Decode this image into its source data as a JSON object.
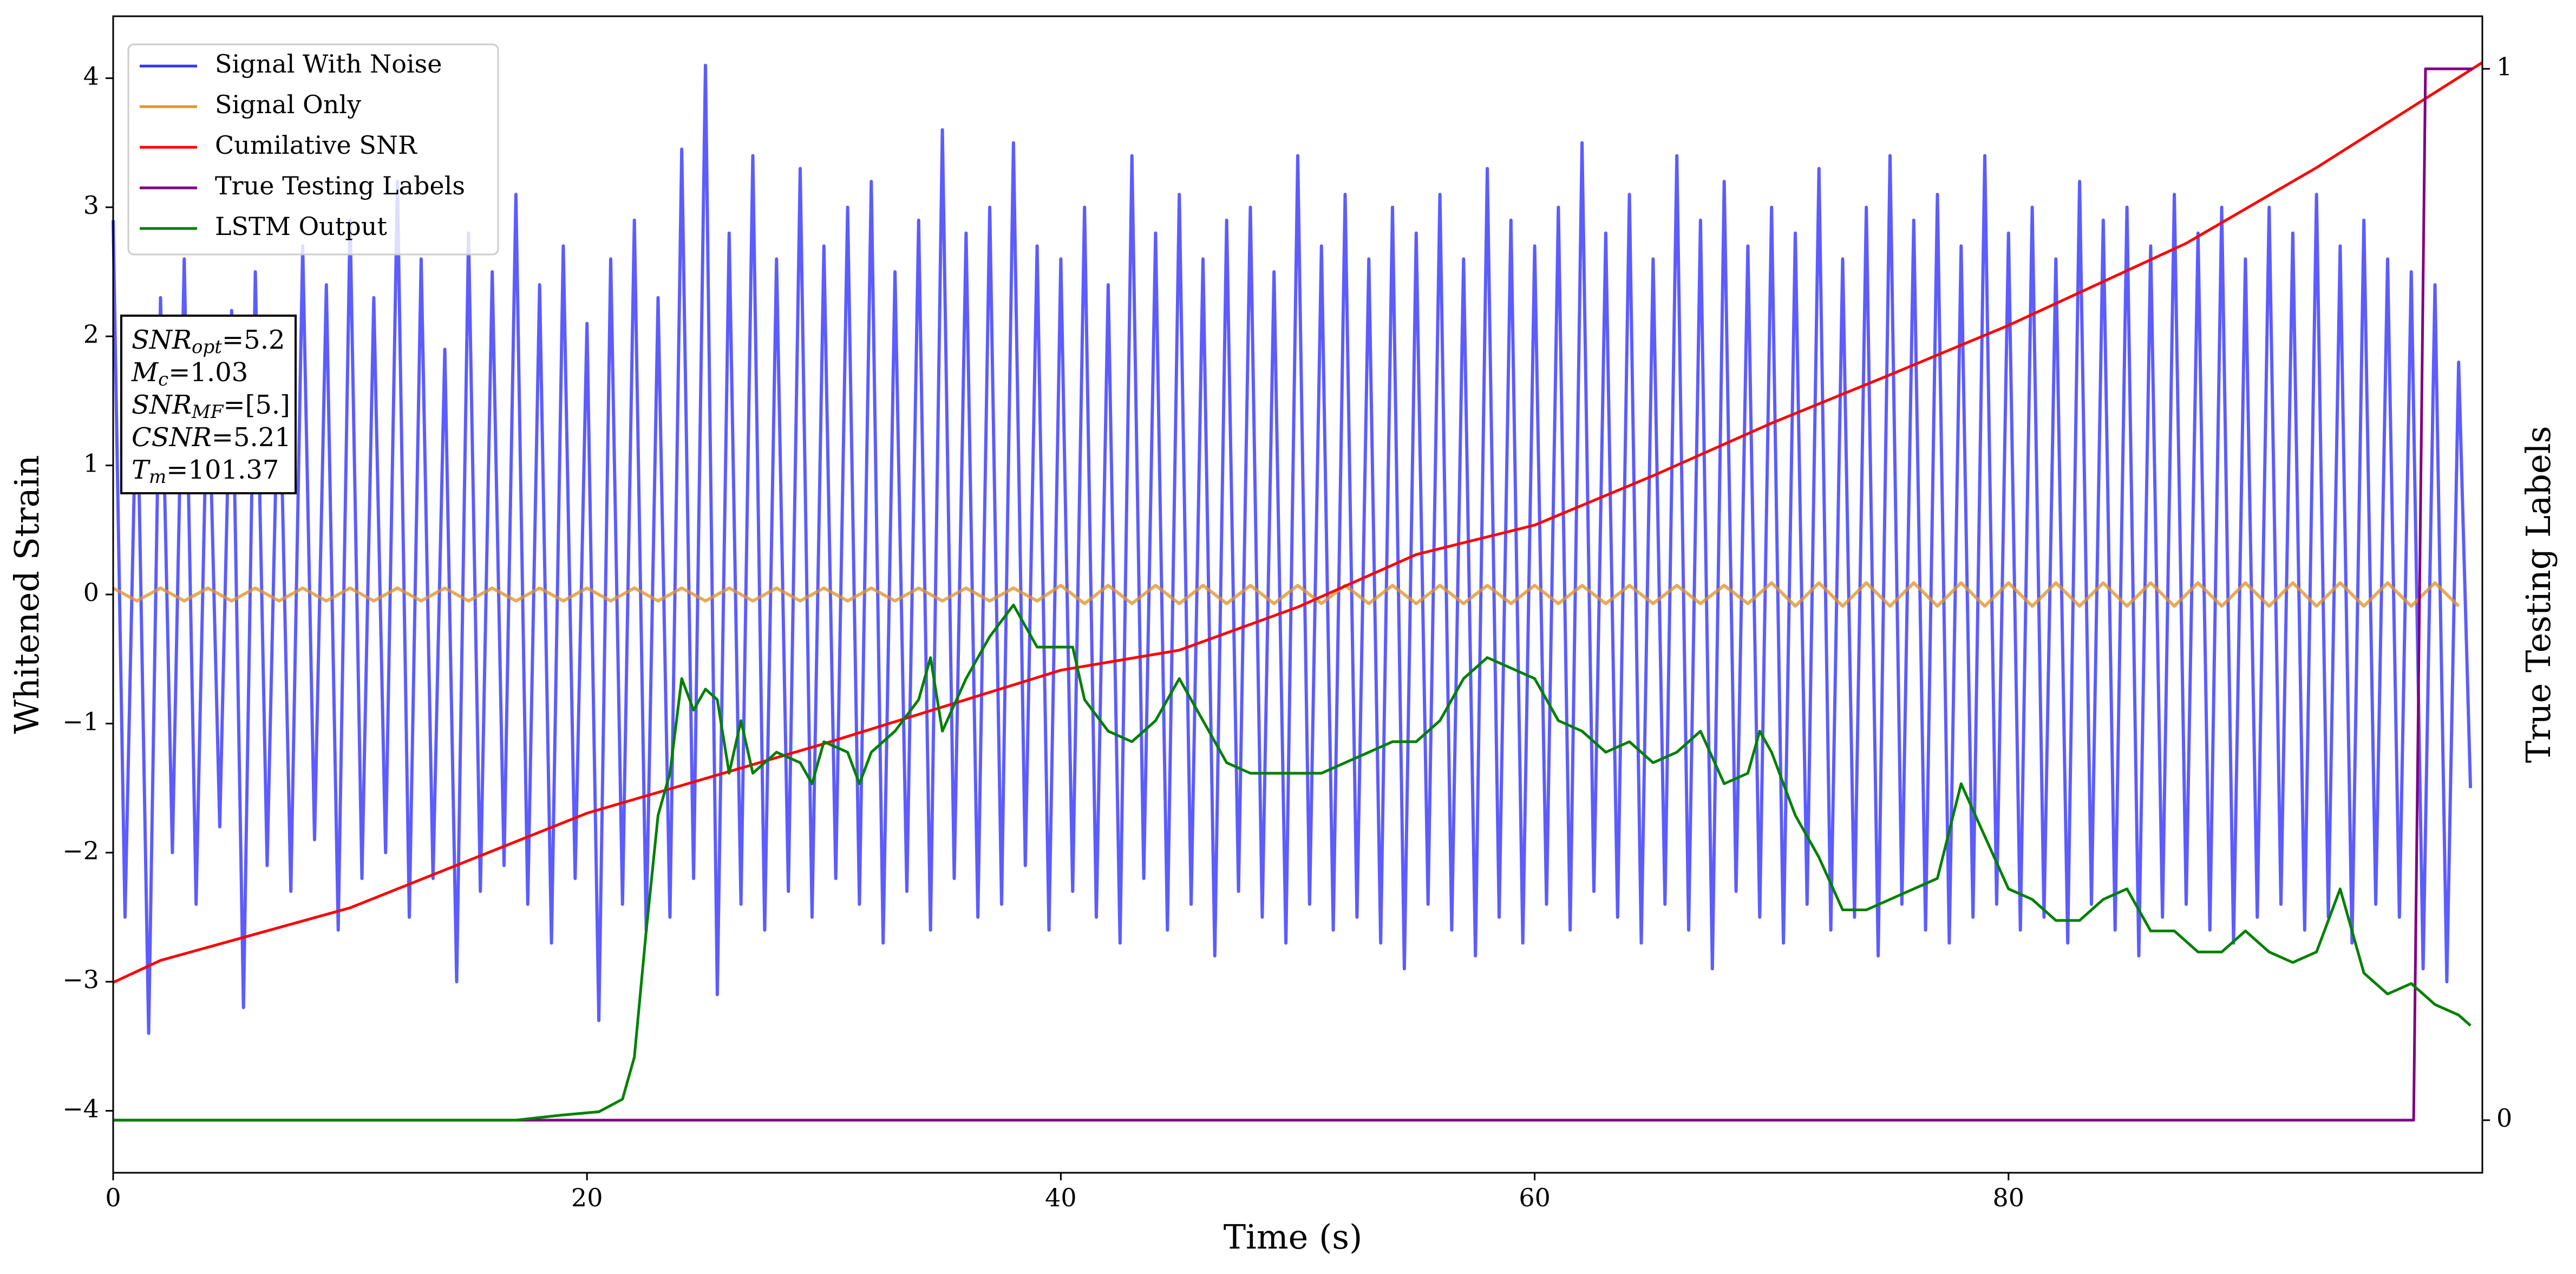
{
  "chart_data": {
    "type": "line",
    "xlabel": "Time (s)",
    "ylabel": "Whitened Strain",
    "y2label": "True Testing Labels",
    "xlim": [
      0,
      100
    ],
    "xticks": [
      0,
      20,
      40,
      60,
      80
    ],
    "ylim": [
      -4.48,
      4.48
    ],
    "yticks": [
      {
        "value": -4,
        "label": "−4"
      },
      {
        "value": -3,
        "label": "−3"
      },
      {
        "value": -2,
        "label": "−2"
      },
      {
        "value": -1,
        "label": "−1"
      },
      0,
      1,
      2,
      3,
      4
    ],
    "y2lim": [
      -0.05,
      1.05
    ],
    "y2ticks": [
      0,
      1
    ],
    "legend": "upper left",
    "annotation": [
      {
        "symbol": "SNR",
        "subscript": "opt",
        "text": "=5.2"
      },
      {
        "symbol": "M",
        "subscript": "c",
        "text": "=1.03"
      },
      {
        "symbol": "SNR",
        "subscript": "MF",
        "text": "=[5.]"
      },
      {
        "symbol": "CSNR",
        "text": "=5.21"
      },
      {
        "symbol": "T",
        "subscript": "m",
        "text": "=101.37"
      }
    ],
    "series": [
      {
        "name": "Signal With Noise",
        "color": "#3333ff",
        "x": [
          0,
          0.5,
          1,
          1.5,
          2,
          2.5,
          3,
          3.5,
          4,
          4.5,
          5,
          5.5,
          6,
          6.5,
          7,
          7.5,
          8,
          8.5,
          9,
          9.5,
          10,
          10.5,
          11,
          11.5,
          12,
          12.5,
          13,
          13.5,
          14,
          14.5,
          15,
          15.5,
          16,
          16.5,
          17,
          17.5,
          18,
          18.5,
          19,
          19.5,
          20,
          20.5,
          21,
          21.5,
          22,
          22.5,
          23,
          23.5,
          24,
          24.5,
          25,
          25.5,
          26,
          26.5,
          27,
          27.5,
          28,
          28.5,
          29,
          29.5,
          30,
          30.5,
          31,
          31.5,
          32,
          32.5,
          33,
          33.5,
          34,
          34.5,
          35,
          35.5,
          36,
          36.5,
          37,
          37.5,
          38,
          38.5,
          39,
          39.5,
          40,
          40.5,
          41,
          41.5,
          42,
          42.5,
          43,
          43.5,
          44,
          44.5,
          45,
          45.5,
          46,
          46.5,
          47,
          47.5,
          48,
          48.5,
          49,
          49.5,
          50,
          50.5,
          51,
          51.5,
          52,
          52.5,
          53,
          53.5,
          54,
          54.5,
          55,
          55.5,
          56,
          56.5,
          57,
          57.5,
          58,
          58.5,
          59,
          59.5,
          60,
          60.5,
          61,
          61.5,
          62,
          62.5,
          63,
          63.5,
          64,
          64.5,
          65,
          65.5,
          66,
          66.5,
          67,
          67.5,
          68,
          68.5,
          69,
          69.5,
          70,
          70.5,
          71,
          71.5,
          72,
          72.5,
          73,
          73.5,
          74,
          74.5,
          75,
          75.5,
          76,
          76.5,
          77,
          77.5,
          78,
          78.5,
          79,
          79.5,
          80,
          80.5,
          81,
          81.5,
          82,
          82.5,
          83,
          83.5,
          84,
          84.5,
          85,
          85.5,
          86,
          86.5,
          87,
          87.5,
          88,
          88.5,
          89,
          89.5,
          90,
          90.5,
          91,
          91.5,
          92,
          92.5,
          93,
          93.5,
          94,
          94.5,
          95,
          95.5,
          96,
          96.5,
          97,
          97.5,
          98,
          98.5,
          99,
          99.5
        ],
        "values": [
          2.9,
          -2.5,
          1.8,
          -3.4,
          2.3,
          -2.0,
          2.6,
          -2.4,
          1.9,
          -1.8,
          2.2,
          -3.2,
          2.5,
          -2.1,
          2.0,
          -2.3,
          2.7,
          -1.9,
          2.4,
          -2.6,
          2.9,
          -2.2,
          2.3,
          -2.0,
          3.2,
          -2.5,
          2.6,
          -2.2,
          1.9,
          -3.0,
          2.8,
          -2.3,
          2.5,
          -2.1,
          3.1,
          -2.4,
          2.4,
          -2.7,
          2.7,
          -2.2,
          2.1,
          -3.3,
          2.6,
          -2.4,
          2.9,
          -2.6,
          2.3,
          -2.5,
          3.45,
          -2.2,
          4.1,
          -3.1,
          2.8,
          -2.4,
          3.4,
          -2.6,
          2.6,
          -2.3,
          3.3,
          -2.5,
          2.7,
          -2.2,
          3.0,
          -2.4,
          3.2,
          -2.7,
          2.5,
          -2.3,
          2.9,
          -2.6,
          3.6,
          -2.2,
          2.8,
          -2.5,
          3.0,
          -2.4,
          3.5,
          -2.1,
          2.7,
          -2.6,
          2.6,
          -2.3,
          3.0,
          -2.5,
          2.4,
          -2.7,
          3.4,
          -2.2,
          2.8,
          -2.6,
          3.1,
          -2.4,
          2.6,
          -2.8,
          2.9,
          -2.3,
          3.0,
          -2.5,
          2.5,
          -2.7,
          3.4,
          -2.4,
          2.7,
          -2.6,
          3.1,
          -2.5,
          2.6,
          -2.7,
          3.0,
          -2.9,
          2.8,
          -2.4,
          3.1,
          -2.6,
          2.6,
          -2.8,
          3.3,
          -2.5,
          2.9,
          -2.7,
          2.7,
          -2.4,
          3.0,
          -2.6,
          3.5,
          -2.3,
          2.8,
          -2.5,
          3.1,
          -2.7,
          2.6,
          -2.4,
          3.4,
          -2.6,
          2.9,
          -2.9,
          3.2,
          -2.3,
          2.7,
          -2.5,
          3.0,
          -2.7,
          2.8,
          -2.4,
          3.3,
          -2.6,
          2.6,
          -2.5,
          3.0,
          -2.8,
          3.4,
          -2.4,
          2.9,
          -2.6,
          3.1,
          -2.7,
          2.7,
          -2.5,
          3.4,
          -2.4,
          2.8,
          -2.6,
          3.0,
          -2.5,
          2.6,
          -2.7,
          3.2,
          -2.4,
          2.9,
          -2.6,
          3.0,
          -2.8,
          2.7,
          -2.5,
          3.1,
          -2.4,
          2.8,
          -2.6,
          3.0,
          -2.7,
          2.6,
          -2.5,
          3.0,
          -2.4,
          2.8,
          -2.6,
          3.1,
          -2.5,
          2.7,
          -2.7,
          2.9,
          -2.4,
          2.6,
          -2.5,
          2.5,
          -2.9,
          2.4,
          -3.0,
          1.8,
          -1.5
        ]
      },
      {
        "name": "Signal Only",
        "color": "#e0962e",
        "x": [
          0,
          1,
          2,
          3,
          4,
          5,
          6,
          7,
          8,
          9,
          10,
          11,
          12,
          13,
          14,
          15,
          16,
          17,
          18,
          19,
          20,
          21,
          22,
          23,
          24,
          25,
          26,
          27,
          28,
          29,
          30,
          31,
          32,
          33,
          34,
          35,
          36,
          37,
          38,
          39,
          40,
          41,
          42,
          43,
          44,
          45,
          46,
          47,
          48,
          49,
          50,
          51,
          52,
          53,
          54,
          55,
          56,
          57,
          58,
          59,
          60,
          61,
          62,
          63,
          64,
          65,
          66,
          67,
          68,
          69,
          70,
          71,
          72,
          73,
          74,
          75,
          76,
          77,
          78,
          79,
          80,
          81,
          82,
          83,
          84,
          85,
          86,
          87,
          88,
          89,
          90,
          91,
          92,
          93,
          94,
          95,
          96,
          97,
          98,
          99
        ],
        "values": [
          0.05,
          -0.05,
          0.05,
          -0.05,
          0.05,
          -0.05,
          0.05,
          -0.05,
          0.05,
          -0.05,
          0.05,
          -0.05,
          0.05,
          -0.05,
          0.05,
          -0.05,
          0.05,
          -0.05,
          0.05,
          -0.05,
          0.05,
          -0.05,
          0.05,
          -0.05,
          0.05,
          -0.05,
          0.05,
          -0.05,
          0.05,
          -0.05,
          0.05,
          -0.05,
          0.05,
          -0.05,
          0.05,
          -0.05,
          0.05,
          -0.05,
          0.05,
          -0.05,
          0.07,
          -0.07,
          0.07,
          -0.07,
          0.07,
          -0.07,
          0.07,
          -0.07,
          0.07,
          -0.07,
          0.07,
          -0.07,
          0.07,
          -0.07,
          0.07,
          -0.07,
          0.07,
          -0.07,
          0.07,
          -0.07,
          0.07,
          -0.07,
          0.07,
          -0.07,
          0.07,
          -0.07,
          0.07,
          -0.07,
          0.07,
          -0.07,
          0.09,
          -0.09,
          0.09,
          -0.09,
          0.09,
          -0.09,
          0.09,
          -0.09,
          0.09,
          -0.09,
          0.09,
          -0.09,
          0.09,
          -0.09,
          0.09,
          -0.09,
          0.09,
          -0.09,
          0.09,
          -0.09,
          0.09,
          -0.09,
          0.09,
          -0.09,
          0.09,
          -0.09,
          0.09,
          -0.09,
          0.09,
          -0.09
        ]
      },
      {
        "name": "Cumilative SNR",
        "color": "#ff0000",
        "axis": "y2",
        "x": [
          0,
          2,
          10,
          20,
          30,
          40,
          45,
          50,
          55,
          60,
          65,
          70,
          75,
          80,
          87.5,
          93,
          100
        ],
        "values": [
          0.131,
          0.152,
          0.202,
          0.292,
          0.358,
          0.428,
          0.447,
          0.488,
          0.538,
          0.566,
          0.613,
          0.663,
          0.709,
          0.756,
          0.834,
          0.906,
          1.006
        ]
      },
      {
        "name": "True Testing Labels",
        "color": "#800080",
        "axis": "y2",
        "x": [
          0,
          97.1,
          97.6,
          99.6
        ],
        "values": [
          0,
          0,
          1,
          1
        ]
      },
      {
        "name": "LSTM Output",
        "color": "#008000",
        "axis": "y2",
        "x": [
          0,
          17,
          19,
          20.5,
          21.5,
          22,
          22.5,
          23,
          23.5,
          24,
          24.5,
          25,
          25.5,
          26,
          26.5,
          27,
          28,
          29,
          29.5,
          30,
          31,
          31.5,
          32,
          33,
          34,
          34.5,
          35,
          36,
          37,
          38,
          38.5,
          39,
          40,
          40.5,
          41,
          42,
          43,
          44,
          45,
          46,
          47,
          48,
          50,
          51,
          52,
          53,
          54,
          55,
          56,
          57,
          58,
          59,
          60,
          61,
          62,
          63,
          64,
          65,
          66,
          67,
          68,
          69,
          69.5,
          70,
          71,
          72,
          73,
          74,
          75,
          76,
          77,
          78,
          79,
          80,
          81,
          82,
          83,
          84,
          85,
          86,
          87,
          88,
          89,
          90,
          91,
          92,
          93,
          94,
          95,
          96,
          97,
          98,
          99,
          99.5
        ],
        "values": [
          0,
          0,
          0.005,
          0.008,
          0.02,
          0.06,
          0.18,
          0.29,
          0.33,
          0.42,
          0.39,
          0.41,
          0.4,
          0.33,
          0.38,
          0.33,
          0.35,
          0.34,
          0.32,
          0.36,
          0.35,
          0.32,
          0.35,
          0.37,
          0.4,
          0.44,
          0.37,
          0.42,
          0.46,
          0.49,
          0.47,
          0.45,
          0.45,
          0.45,
          0.4,
          0.37,
          0.36,
          0.38,
          0.42,
          0.38,
          0.34,
          0.33,
          0.33,
          0.33,
          0.34,
          0.35,
          0.36,
          0.36,
          0.38,
          0.42,
          0.44,
          0.43,
          0.42,
          0.38,
          0.37,
          0.35,
          0.36,
          0.34,
          0.35,
          0.37,
          0.32,
          0.33,
          0.37,
          0.35,
          0.29,
          0.25,
          0.2,
          0.2,
          0.21,
          0.22,
          0.23,
          0.32,
          0.27,
          0.22,
          0.21,
          0.19,
          0.19,
          0.21,
          0.22,
          0.18,
          0.18,
          0.16,
          0.16,
          0.18,
          0.16,
          0.15,
          0.16,
          0.22,
          0.14,
          0.12,
          0.13,
          0.11,
          0.1,
          0.09
        ]
      }
    ]
  }
}
